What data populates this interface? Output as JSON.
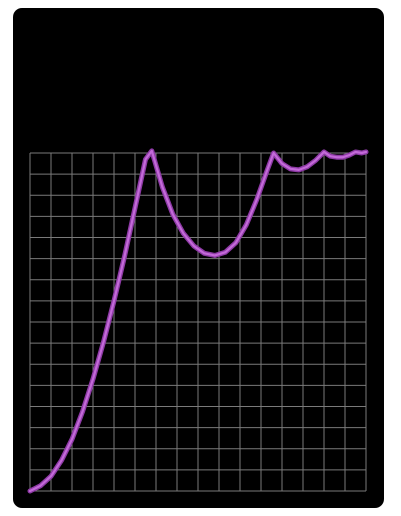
{
  "colors": {
    "card_background": "#000000",
    "page_background": "#ffffff",
    "grid": "#7a7a7a",
    "line": "#c36ad8",
    "line_glow": "#8e3aa6"
  },
  "chart_data": {
    "type": "line",
    "title": "",
    "xlabel": "",
    "ylabel": "",
    "grid": true,
    "legend": "none",
    "xlim": [
      0,
      16
    ],
    "ylim": [
      0,
      16
    ],
    "series": [
      {
        "x": [
          0,
          0.5,
          1,
          1.5,
          2,
          2.5,
          3,
          3.5,
          4,
          4.5,
          5,
          5.5,
          5.8,
          6.3,
          6.8,
          7.3,
          7.8,
          8.3,
          8.8,
          9.3,
          9.8,
          10.3,
          10.8,
          11.3,
          11.6,
          12,
          12.4,
          12.8,
          13.2,
          13.6,
          14,
          14.3,
          14.6,
          14.9,
          15.2,
          15.5,
          15.8,
          16
        ],
        "y": [
          0,
          0.25,
          0.7,
          1.45,
          2.45,
          3.75,
          5.3,
          7.05,
          9.0,
          11.1,
          13.4,
          15.7,
          16.1,
          14.4,
          13.1,
          12.2,
          11.6,
          11.25,
          11.15,
          11.3,
          11.75,
          12.6,
          13.8,
          15.2,
          16.0,
          15.5,
          15.25,
          15.2,
          15.35,
          15.65,
          16.05,
          15.85,
          15.8,
          15.8,
          15.9,
          16.05,
          16.0,
          16.05
        ]
      }
    ]
  }
}
